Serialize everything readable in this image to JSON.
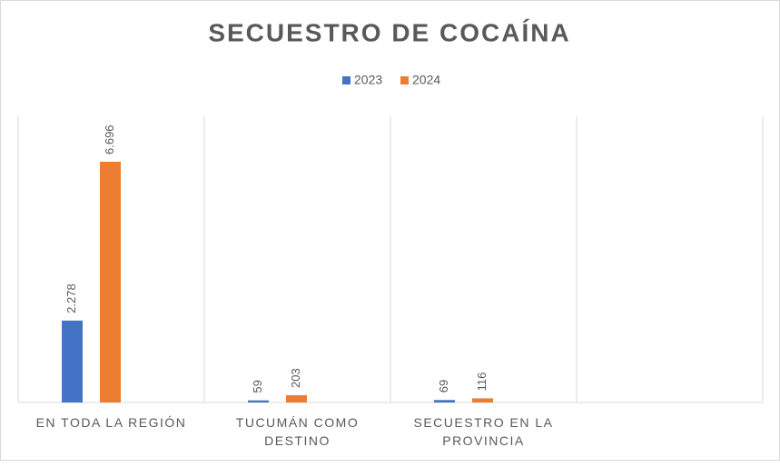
{
  "chart_data": {
    "type": "bar",
    "title": "SECUESTRO DE COCAÍNA",
    "categories": [
      "EN TODA LA REGIÓN",
      "TUCUMÁN COMO DESTINO",
      "SECUESTRO EN LA PROVINCIA",
      null
    ],
    "series": [
      {
        "name": "2023",
        "color": "#4472c4",
        "values": [
          2278,
          59,
          69,
          null
        ],
        "value_labels": [
          "2.278",
          "59",
          "69",
          null
        ]
      },
      {
        "name": "2024",
        "color": "#ed7d31",
        "values": [
          6696,
          203,
          116,
          null
        ],
        "value_labels": [
          "6.696",
          "203",
          "116",
          null
        ]
      }
    ],
    "legend": "top"
  }
}
